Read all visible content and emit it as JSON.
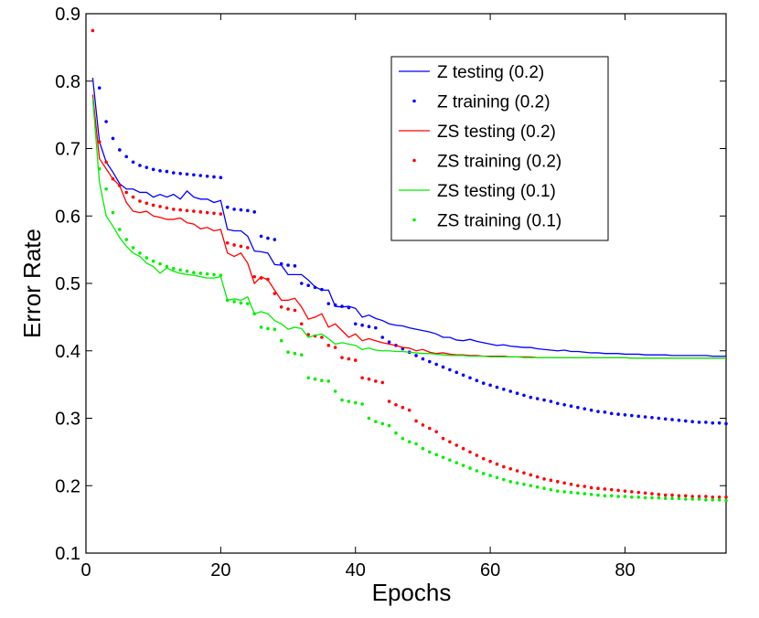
{
  "chart_data": {
    "type": "line",
    "title": "",
    "xlabel": "Epochs",
    "ylabel": "Error Rate",
    "xlim": [
      0,
      95
    ],
    "ylim": [
      0.1,
      0.9
    ],
    "xticks": [
      0,
      20,
      40,
      60,
      80
    ],
    "yticks": [
      0.1,
      0.2,
      0.3,
      0.4,
      0.5,
      0.6,
      0.7,
      0.8,
      0.9
    ],
    "xtick_labels": [
      "0",
      "20",
      "40",
      "60",
      "80"
    ],
    "ytick_labels": [
      "0.1",
      "0.2",
      "0.3",
      "0.4",
      "0.5",
      "0.6",
      "0.7",
      "0.8",
      "0.9"
    ],
    "legend_position": "top-right",
    "series": [
      {
        "name": "Z testing (0.2)",
        "style": "solid",
        "color": "#0000ff",
        "x": [
          1,
          2,
          3,
          4,
          5,
          6,
          7,
          8,
          9,
          10,
          11,
          12,
          13,
          14,
          15,
          16,
          17,
          18,
          19,
          20,
          21,
          22,
          23,
          24,
          25,
          26,
          27,
          28,
          29,
          30,
          31,
          32,
          33,
          34,
          35,
          36,
          37,
          38,
          39,
          40,
          41,
          42,
          43,
          44,
          45,
          46,
          47,
          48,
          49,
          50,
          51,
          52,
          53,
          54,
          55,
          56,
          57,
          58,
          59,
          60,
          61,
          62,
          63,
          64,
          65,
          66,
          67,
          68,
          69,
          70,
          71,
          72,
          73,
          74,
          75,
          76,
          77,
          78,
          79,
          80,
          81,
          82,
          83,
          84,
          85,
          86,
          87,
          88,
          89,
          90,
          91,
          92,
          93,
          94,
          95
        ],
        "y": [
          0.805,
          0.71,
          0.68,
          0.665,
          0.648,
          0.64,
          0.64,
          0.635,
          0.635,
          0.628,
          0.632,
          0.628,
          0.632,
          0.625,
          0.637,
          0.628,
          0.625,
          0.625,
          0.62,
          0.623,
          0.58,
          0.578,
          0.578,
          0.57,
          0.548,
          0.547,
          0.545,
          0.528,
          0.527,
          0.513,
          0.513,
          0.513,
          0.505,
          0.495,
          0.49,
          0.49,
          0.466,
          0.465,
          0.466,
          0.463,
          0.45,
          0.453,
          0.448,
          0.445,
          0.44,
          0.438,
          0.437,
          0.434,
          0.432,
          0.43,
          0.428,
          0.425,
          0.42,
          0.42,
          0.416,
          0.415,
          0.417,
          0.414,
          0.412,
          0.41,
          0.408,
          0.409,
          0.407,
          0.406,
          0.405,
          0.405,
          0.403,
          0.402,
          0.401,
          0.4,
          0.401,
          0.399,
          0.399,
          0.398,
          0.397,
          0.397,
          0.396,
          0.396,
          0.396,
          0.395,
          0.395,
          0.395,
          0.394,
          0.394,
          0.394,
          0.394,
          0.393,
          0.393,
          0.393,
          0.393,
          0.393,
          0.393,
          0.392,
          0.392,
          0.392
        ]
      },
      {
        "name": "Z training (0.2)",
        "style": "dotted",
        "color": "#0000ff",
        "x": [
          2,
          3,
          4,
          5,
          6,
          7,
          8,
          9,
          10,
          11,
          12,
          13,
          14,
          15,
          16,
          17,
          18,
          19,
          20,
          21,
          22,
          23,
          24,
          25,
          26,
          27,
          28,
          29,
          30,
          31,
          32,
          33,
          34,
          35,
          36,
          37,
          38,
          39,
          40,
          41,
          42,
          43,
          44,
          45,
          46,
          47,
          48,
          49,
          50,
          51,
          52,
          53,
          54,
          55,
          56,
          57,
          58,
          59,
          60,
          61,
          62,
          63,
          64,
          65,
          66,
          67,
          68,
          69,
          70,
          71,
          72,
          73,
          74,
          75,
          76,
          77,
          78,
          79,
          80,
          81,
          82,
          83,
          84,
          85,
          86,
          87,
          88,
          89,
          90,
          91,
          92,
          93,
          94,
          95
        ],
        "y": [
          0.79,
          0.74,
          0.715,
          0.698,
          0.688,
          0.68,
          0.675,
          0.672,
          0.669,
          0.667,
          0.666,
          0.664,
          0.663,
          0.662,
          0.661,
          0.66,
          0.659,
          0.658,
          0.657,
          0.613,
          0.61,
          0.609,
          0.608,
          0.606,
          0.57,
          0.567,
          0.565,
          0.529,
          0.527,
          0.526,
          0.5,
          0.497,
          0.494,
          0.491,
          0.47,
          0.468,
          0.466,
          0.464,
          0.44,
          0.438,
          0.436,
          0.434,
          0.42,
          0.413,
          0.408,
          0.403,
          0.398,
          0.393,
          0.388,
          0.384,
          0.38,
          0.376,
          0.372,
          0.368,
          0.364,
          0.36,
          0.356,
          0.352,
          0.349,
          0.346,
          0.343,
          0.34,
          0.337,
          0.334,
          0.331,
          0.329,
          0.327,
          0.325,
          0.322,
          0.32,
          0.318,
          0.316,
          0.314,
          0.312,
          0.31,
          0.309,
          0.307,
          0.306,
          0.305,
          0.304,
          0.303,
          0.302,
          0.301,
          0.3,
          0.299,
          0.298,
          0.297,
          0.296,
          0.295,
          0.294,
          0.294,
          0.293,
          0.293,
          0.292
        ]
      },
      {
        "name": "ZS testing (0.2)",
        "style": "solid",
        "color": "#ff0000",
        "x": [
          1,
          2,
          3,
          4,
          5,
          6,
          7,
          8,
          9,
          10,
          11,
          12,
          13,
          14,
          15,
          16,
          17,
          18,
          19,
          20,
          21,
          22,
          23,
          24,
          25,
          26,
          27,
          28,
          29,
          30,
          31,
          32,
          33,
          34,
          35,
          36,
          37,
          38,
          39,
          40,
          41,
          42,
          43,
          44,
          45,
          46,
          47,
          48,
          49,
          50,
          51,
          52,
          53,
          54,
          55,
          56,
          57,
          58,
          59,
          60,
          61,
          62,
          63,
          64,
          65,
          66,
          67,
          68,
          69,
          70,
          71,
          72,
          73,
          74,
          75,
          76,
          77,
          78,
          79,
          80,
          81,
          82,
          83,
          84,
          85,
          86,
          87,
          88,
          89,
          90,
          91,
          92,
          93,
          94,
          95
        ],
        "y": [
          0.78,
          0.685,
          0.67,
          0.655,
          0.645,
          0.62,
          0.607,
          0.605,
          0.607,
          0.6,
          0.598,
          0.595,
          0.595,
          0.597,
          0.59,
          0.588,
          0.581,
          0.583,
          0.578,
          0.58,
          0.545,
          0.54,
          0.545,
          0.53,
          0.5,
          0.51,
          0.505,
          0.49,
          0.475,
          0.475,
          0.478,
          0.465,
          0.447,
          0.45,
          0.455,
          0.435,
          0.44,
          0.43,
          0.42,
          0.425,
          0.415,
          0.418,
          0.415,
          0.412,
          0.41,
          0.408,
          0.405,
          0.404,
          0.4,
          0.402,
          0.398,
          0.396,
          0.397,
          0.395,
          0.394,
          0.394,
          0.393,
          0.393,
          0.392,
          0.392,
          0.392,
          0.392,
          0.391,
          0.391,
          0.391,
          0.391,
          0.39,
          0.39,
          0.39,
          0.39,
          0.39,
          0.39,
          0.39,
          0.39,
          0.39,
          0.39,
          0.39,
          0.39,
          0.39,
          0.39,
          0.389,
          0.389,
          0.389,
          0.389,
          0.389,
          0.389,
          0.389,
          0.389,
          0.389,
          0.389,
          0.389,
          0.389,
          0.389,
          0.389,
          0.389
        ]
      },
      {
        "name": "ZS training (0.2)",
        "style": "dotted",
        "color": "#ff0000",
        "x": [
          1,
          2,
          3,
          4,
          5,
          6,
          7,
          8,
          9,
          10,
          11,
          12,
          13,
          14,
          15,
          16,
          17,
          18,
          19,
          20,
          21,
          22,
          23,
          24,
          25,
          26,
          27,
          28,
          29,
          30,
          31,
          32,
          33,
          34,
          35,
          36,
          37,
          38,
          39,
          40,
          41,
          42,
          43,
          44,
          45,
          46,
          47,
          48,
          49,
          50,
          51,
          52,
          53,
          54,
          55,
          56,
          57,
          58,
          59,
          60,
          61,
          62,
          63,
          64,
          65,
          66,
          67,
          68,
          69,
          70,
          71,
          72,
          73,
          74,
          75,
          76,
          77,
          78,
          79,
          80,
          81,
          82,
          83,
          84,
          85,
          86,
          87,
          88,
          89,
          90,
          91,
          92,
          93,
          94,
          95
        ],
        "y": [
          0.875,
          0.71,
          0.68,
          0.655,
          0.645,
          0.635,
          0.628,
          0.622,
          0.619,
          0.616,
          0.614,
          0.612,
          0.61,
          0.609,
          0.608,
          0.607,
          0.606,
          0.605,
          0.604,
          0.603,
          0.56,
          0.557,
          0.555,
          0.553,
          0.51,
          0.508,
          0.506,
          0.485,
          0.465,
          0.462,
          0.46,
          0.44,
          0.424,
          0.422,
          0.42,
          0.408,
          0.405,
          0.39,
          0.388,
          0.386,
          0.36,
          0.358,
          0.355,
          0.353,
          0.325,
          0.32,
          0.316,
          0.312,
          0.296,
          0.29,
          0.285,
          0.28,
          0.27,
          0.265,
          0.26,
          0.255,
          0.25,
          0.245,
          0.24,
          0.236,
          0.232,
          0.228,
          0.225,
          0.222,
          0.219,
          0.216,
          0.213,
          0.21,
          0.208,
          0.206,
          0.204,
          0.202,
          0.2,
          0.199,
          0.197,
          0.196,
          0.195,
          0.194,
          0.193,
          0.192,
          0.191,
          0.19,
          0.189,
          0.188,
          0.187,
          0.186,
          0.186,
          0.185,
          0.185,
          0.184,
          0.184,
          0.184,
          0.183,
          0.183,
          0.183
        ]
      },
      {
        "name": "ZS testing (0.1)",
        "style": "solid",
        "color": "#00ee00",
        "x": [
          1,
          2,
          3,
          4,
          5,
          6,
          7,
          8,
          9,
          10,
          11,
          12,
          13,
          14,
          15,
          16,
          17,
          18,
          19,
          20,
          21,
          22,
          23,
          24,
          25,
          26,
          27,
          28,
          29,
          30,
          31,
          32,
          33,
          34,
          35,
          36,
          37,
          38,
          39,
          40,
          41,
          42,
          43,
          44,
          45,
          46,
          47,
          48,
          49,
          50,
          51,
          52,
          53,
          54,
          55,
          56,
          57,
          58,
          59,
          60,
          61,
          62,
          63,
          64,
          65,
          66,
          67,
          68,
          69,
          70,
          71,
          72,
          73,
          74,
          75,
          76,
          77,
          78,
          79,
          80,
          81,
          82,
          83,
          84,
          85,
          86,
          87,
          88,
          89,
          90,
          91,
          92,
          93,
          94,
          95
        ],
        "y": [
          0.775,
          0.65,
          0.6,
          0.585,
          0.568,
          0.555,
          0.545,
          0.54,
          0.53,
          0.525,
          0.515,
          0.523,
          0.518,
          0.515,
          0.513,
          0.512,
          0.51,
          0.508,
          0.508,
          0.51,
          0.475,
          0.477,
          0.475,
          0.48,
          0.455,
          0.458,
          0.455,
          0.445,
          0.44,
          0.432,
          0.435,
          0.433,
          0.42,
          0.423,
          0.425,
          0.418,
          0.41,
          0.412,
          0.41,
          0.408,
          0.402,
          0.404,
          0.401,
          0.4,
          0.4,
          0.399,
          0.399,
          0.398,
          0.397,
          0.396,
          0.396,
          0.395,
          0.394,
          0.393,
          0.393,
          0.393,
          0.392,
          0.392,
          0.392,
          0.391,
          0.391,
          0.391,
          0.391,
          0.391,
          0.39,
          0.39,
          0.39,
          0.39,
          0.39,
          0.39,
          0.39,
          0.39,
          0.39,
          0.39,
          0.39,
          0.39,
          0.39,
          0.39,
          0.39,
          0.39,
          0.389,
          0.389,
          0.389,
          0.389,
          0.389,
          0.389,
          0.389,
          0.389,
          0.389,
          0.389,
          0.389,
          0.389,
          0.389,
          0.389,
          0.389
        ]
      },
      {
        "name": "ZS training (0.1)",
        "style": "dotted",
        "color": "#00ee00",
        "x": [
          2,
          3,
          4,
          5,
          6,
          7,
          8,
          9,
          10,
          11,
          12,
          13,
          14,
          15,
          16,
          17,
          18,
          19,
          20,
          21,
          22,
          23,
          24,
          25,
          26,
          27,
          28,
          29,
          30,
          31,
          32,
          33,
          34,
          35,
          36,
          37,
          38,
          39,
          40,
          41,
          42,
          43,
          44,
          45,
          46,
          47,
          48,
          49,
          50,
          51,
          52,
          53,
          54,
          55,
          56,
          57,
          58,
          59,
          60,
          61,
          62,
          63,
          64,
          65,
          66,
          67,
          68,
          69,
          70,
          71,
          72,
          73,
          74,
          75,
          76,
          77,
          78,
          79,
          80,
          81,
          82,
          83,
          84,
          85,
          86,
          87,
          88,
          89,
          90,
          91,
          92,
          93,
          94,
          95
        ],
        "y": [
          0.67,
          0.64,
          0.605,
          0.58,
          0.565,
          0.553,
          0.545,
          0.538,
          0.533,
          0.529,
          0.525,
          0.522,
          0.52,
          0.518,
          0.516,
          0.515,
          0.514,
          0.513,
          0.512,
          0.475,
          0.473,
          0.471,
          0.47,
          0.455,
          0.435,
          0.433,
          0.432,
          0.415,
          0.398,
          0.396,
          0.394,
          0.36,
          0.358,
          0.356,
          0.355,
          0.34,
          0.327,
          0.325,
          0.323,
          0.321,
          0.3,
          0.295,
          0.292,
          0.289,
          0.278,
          0.27,
          0.265,
          0.262,
          0.255,
          0.25,
          0.246,
          0.242,
          0.238,
          0.234,
          0.23,
          0.226,
          0.222,
          0.218,
          0.215,
          0.212,
          0.209,
          0.206,
          0.204,
          0.202,
          0.2,
          0.198,
          0.196,
          0.194,
          0.192,
          0.191,
          0.19,
          0.189,
          0.188,
          0.187,
          0.186,
          0.185,
          0.185,
          0.184,
          0.184,
          0.183,
          0.183,
          0.182,
          0.182,
          0.182,
          0.181,
          0.181,
          0.181,
          0.18,
          0.18,
          0.18,
          0.179,
          0.179,
          0.179,
          0.178
        ]
      }
    ]
  }
}
